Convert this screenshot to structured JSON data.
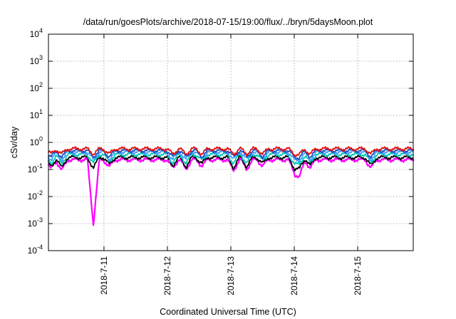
{
  "chart_data": {
    "type": "line",
    "title": "/data/run/goesPlots/archive/2018-07-15/19:00/flux/../bryn/5daysMoon.plot",
    "xlabel": "Coordinated Universal Time (UTC)",
    "ylabel": "cSv/day",
    "yscale": "log",
    "ylim": [
      0.0001,
      10000
    ],
    "y_ticks": [
      {
        "base": "10",
        "exp": "4",
        "value": 10000
      },
      {
        "base": "10",
        "exp": "3",
        "value": 1000
      },
      {
        "base": "10",
        "exp": "2",
        "value": 100
      },
      {
        "base": "10",
        "exp": "1",
        "value": 10
      },
      {
        "base": "10",
        "exp": "0",
        "value": 1
      },
      {
        "base": "10",
        "exp": "-1",
        "value": 0.1
      },
      {
        "base": "10",
        "exp": "-2",
        "value": 0.01
      },
      {
        "base": "10",
        "exp": "-3",
        "value": 0.001
      },
      {
        "base": "10",
        "exp": "-4",
        "value": 0.0001
      }
    ],
    "x_start": "2018-07-10 03:00",
    "x_end": "2018-07-15 21:00",
    "x_ticks": [
      {
        "label": "2018-7-11",
        "date": "2018-07-11"
      },
      {
        "label": "2018-7-12",
        "date": "2018-07-12"
      },
      {
        "label": "2018-7-13",
        "date": "2018-07-13"
      },
      {
        "label": "2018-7-14",
        "date": "2018-07-14"
      },
      {
        "label": "2018-7-15",
        "date": "2018-07-15"
      }
    ],
    "grid": true,
    "series": [
      {
        "color": "#ff00ff",
        "base": 0.23
      },
      {
        "color": "#000000",
        "base": 0.28
      },
      {
        "color": "#00c8b4",
        "base": 0.36
      },
      {
        "color": "#40a0ff",
        "base": 0.44
      },
      {
        "color": "#2050c0",
        "base": 0.5
      },
      {
        "color": "#e01010",
        "base": 0.58
      }
    ],
    "dips": [
      {
        "date": "2018-07-10 04:00",
        "factor": 0.45
      },
      {
        "date": "2018-07-10 08:00",
        "factor": 0.4
      },
      {
        "date": "2018-07-10 20:00",
        "factor": 0.004
      },
      {
        "date": "2018-07-11 02:00",
        "factor": 0.55
      },
      {
        "date": "2018-07-12 02:00",
        "factor": 0.5
      },
      {
        "date": "2018-07-12 07:00",
        "factor": 0.45
      },
      {
        "date": "2018-07-12 13:00",
        "factor": 0.6
      },
      {
        "date": "2018-07-13 01:00",
        "factor": 0.4
      },
      {
        "date": "2018-07-13 06:00",
        "factor": 0.45
      },
      {
        "date": "2018-07-13 12:00",
        "factor": 0.6
      },
      {
        "date": "2018-07-14 00:00",
        "factor": 0.35
      },
      {
        "date": "2018-07-14 02:00",
        "factor": 0.25
      },
      {
        "date": "2018-07-14 06:00",
        "factor": 0.5
      },
      {
        "date": "2018-07-15 05:00",
        "factor": 0.5
      }
    ]
  }
}
